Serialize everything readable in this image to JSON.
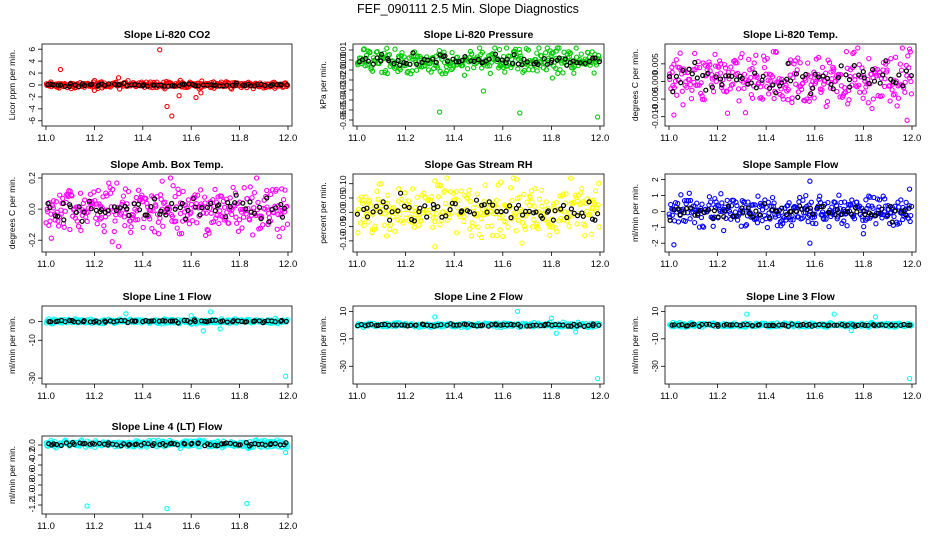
{
  "page_title": "FEF_090111  2.5 Min. Slope Diagnostics",
  "colors": {
    "red": "#ff0000",
    "green": "#00cc00",
    "magenta": "#ff00ff",
    "yellow": "#ffff00",
    "blue": "#0000ff",
    "cyan": "#00ffff",
    "black": "#000000"
  },
  "chart_data": [
    {
      "type": "scatter",
      "title": "Slope Li-820 CO2",
      "ylabel": "Licor ppm per min.",
      "xlabel": "",
      "xlim": [
        11.0,
        12.0
      ],
      "xticks": [
        11.0,
        11.2,
        11.4,
        11.6,
        11.8,
        12.0
      ],
      "xtick_labels": [
        "11.0",
        "11.2",
        "11.4",
        "11.6",
        "11.8",
        "12.0"
      ],
      "ylim": [
        -6.2,
        6.2
      ],
      "yticks": [
        -6,
        -4,
        -2,
        0,
        2,
        4,
        6
      ],
      "ytick_labels": [
        "-6",
        "-4",
        "-2",
        "0",
        "2",
        "4",
        "6"
      ],
      "series_color": "red",
      "bulk": {
        "n": 320,
        "center": 0.0,
        "spread": 0.55
      },
      "notable_points": [
        [
          11.06,
          2.6
        ],
        [
          11.47,
          5.9
        ],
        [
          11.5,
          -3.6
        ],
        [
          11.52,
          -5.2
        ],
        [
          11.55,
          -1.8
        ],
        [
          11.62,
          -2.1
        ],
        [
          11.64,
          -1.3
        ],
        [
          11.3,
          1.2
        ],
        [
          11.2,
          -0.9
        ]
      ]
    },
    {
      "type": "scatter",
      "title": "Slope Li-820 Pressure",
      "ylabel": "kPa per min.",
      "xlabel": "",
      "xlim": [
        11.0,
        12.0
      ],
      "xticks": [
        11.0,
        11.2,
        11.4,
        11.6,
        11.8,
        12.0
      ],
      "xtick_labels": [
        "11.0",
        "11.2",
        "11.4",
        "11.6",
        "11.8",
        "12.0"
      ],
      "ylim": [
        -0.062,
        0.012
      ],
      "yticks": [
        -0.06,
        -0.05,
        -0.04,
        -0.03,
        -0.02,
        -0.01,
        0.0,
        0.01
      ],
      "ytick_labels": [
        "-0.06",
        "-0.05",
        "-0.04",
        "-0.03",
        "-0.02",
        "-0.01",
        "0.00",
        "0.01"
      ],
      "series_color": "green",
      "bulk": {
        "n": 320,
        "center": -0.001,
        "spread": 0.012
      },
      "notable_points": [
        [
          11.34,
          -0.052
        ],
        [
          11.67,
          -0.053
        ],
        [
          11.99,
          -0.057
        ],
        [
          11.52,
          -0.031
        ],
        [
          11.82,
          0.009
        ],
        [
          11.1,
          0.004
        ]
      ]
    },
    {
      "type": "scatter",
      "title": "Slope Li-820 Temp.",
      "ylabel": "degrees C per min.",
      "xlabel": "",
      "xlim": [
        11.0,
        12.0
      ],
      "xticks": [
        11.0,
        11.2,
        11.4,
        11.6,
        11.8,
        12.0
      ],
      "xtick_labels": [
        "11.0",
        "11.2",
        "11.4",
        "11.6",
        "11.8",
        "12.0"
      ],
      "ylim": [
        -0.0115,
        0.0095
      ],
      "yticks": [
        -0.01,
        -0.005,
        0.0,
        0.005
      ],
      "ytick_labels": [
        "-0.010",
        "-0.005",
        "0.000",
        "0.005"
      ],
      "series_color": "magenta",
      "bulk": {
        "n": 320,
        "center": 0.0005,
        "spread": 0.0075
      },
      "notable_points": [
        [
          11.99,
          0.0092
        ],
        [
          11.98,
          -0.011
        ],
        [
          11.02,
          -0.0095
        ]
      ]
    },
    {
      "type": "scatter",
      "title": "Slope Amb. Box Temp.",
      "ylabel": "degrees C per min.",
      "xlabel": "",
      "xlim": [
        11.0,
        12.0
      ],
      "xticks": [
        11.0,
        11.2,
        11.4,
        11.6,
        11.8,
        12.0
      ],
      "xtick_labels": [
        "11.0",
        "11.2",
        "11.4",
        "11.6",
        "11.8",
        "12.0"
      ],
      "ylim": [
        -0.25,
        0.2
      ],
      "yticks": [
        -0.2,
        0.0,
        0.2
      ],
      "ytick_labels": [
        "-0.2",
        "0.0",
        "0.2"
      ],
      "series_color": "magenta",
      "bulk": {
        "n": 320,
        "center": 0.0,
        "spread": 0.15
      },
      "notable_points": [
        [
          11.3,
          -0.24
        ],
        [
          11.35,
          -0.15
        ],
        [
          11.48,
          0.18
        ]
      ]
    },
    {
      "type": "scatter",
      "title": "Slope Gas Stream RH",
      "ylabel": "percent per min.",
      "xlabel": "",
      "xlim": [
        11.0,
        12.0
      ],
      "xticks": [
        11.0,
        11.2,
        11.4,
        11.6,
        11.8,
        12.0
      ],
      "xtick_labels": [
        "11.0",
        "11.2",
        "11.4",
        "11.6",
        "11.8",
        "12.0"
      ],
      "ylim": [
        -0.125,
        0.12
      ],
      "yticks": [
        -0.1,
        -0.05,
        0.0,
        0.05,
        0.1
      ],
      "ytick_labels": [
        "-0.10",
        "-0.05",
        "0.00",
        "0.05",
        "0.10"
      ],
      "series_color": "yellow",
      "bulk": {
        "n": 320,
        "center": 0.0,
        "spread": 0.09
      },
      "notable_points": [
        [
          11.32,
          -0.12
        ],
        [
          11.32,
          0.11
        ],
        [
          11.1,
          0.1
        ]
      ]
    },
    {
      "type": "scatter",
      "title": "Slope Sample Flow",
      "ylabel": "ml/min per min.",
      "xlabel": "",
      "xlim": [
        11.0,
        12.0
      ],
      "xticks": [
        11.0,
        11.2,
        11.4,
        11.6,
        11.8,
        12.0
      ],
      "xtick_labels": [
        "11.0",
        "11.2",
        "11.4",
        "11.6",
        "11.8",
        "12.0"
      ],
      "ylim": [
        -2.3,
        2.1
      ],
      "yticks": [
        -2,
        -1,
        0,
        1,
        2
      ],
      "ytick_labels": [
        "-2",
        "-1",
        "0",
        "1",
        "2"
      ],
      "series_color": "blue",
      "bulk": {
        "n": 320,
        "center": 0.0,
        "spread": 0.9
      },
      "notable_points": [
        [
          11.02,
          -2.1
        ],
        [
          11.58,
          1.9
        ],
        [
          11.58,
          -2.0
        ],
        [
          11.99,
          1.4
        ],
        [
          11.8,
          -1.4
        ]
      ]
    },
    {
      "type": "scatter",
      "title": "Slope Line 1 Flow",
      "ylabel": "ml/min per min.",
      "xlabel": "",
      "xlim": [
        11.0,
        12.0
      ],
      "xticks": [
        11.0,
        11.2,
        11.4,
        11.6,
        11.8,
        12.0
      ],
      "xtick_labels": [
        "11.0",
        "11.2",
        "11.4",
        "11.6",
        "11.8",
        "12.0"
      ],
      "ylim": [
        -31,
        6
      ],
      "yticks": [
        -30,
        -10,
        0
      ],
      "ytick_labels": [
        "-30",
        "-10",
        "0"
      ],
      "series_color": "cyan",
      "bulk": {
        "n": 320,
        "center": 0.0,
        "spread": 1.2
      },
      "notable_points": [
        [
          11.99,
          -29
        ],
        [
          11.33,
          4
        ],
        [
          11.65,
          -5
        ],
        [
          11.72,
          -4
        ],
        [
          11.68,
          5
        ],
        [
          11.6,
          3
        ]
      ]
    },
    {
      "type": "scatter",
      "title": "Slope Line 2 Flow",
      "ylabel": "ml/min per min.",
      "xlabel": "",
      "xlim": [
        11.0,
        12.0
      ],
      "xticks": [
        11.0,
        11.2,
        11.4,
        11.6,
        11.8,
        12.0
      ],
      "xtick_labels": [
        "11.0",
        "11.2",
        "11.4",
        "11.6",
        "11.8",
        "12.0"
      ],
      "ylim": [
        -40,
        11
      ],
      "yticks": [
        -30,
        -10,
        10
      ],
      "ytick_labels": [
        "-30",
        "-10",
        "10"
      ],
      "series_color": "cyan",
      "bulk": {
        "n": 320,
        "center": 0.0,
        "spread": 1.6
      },
      "notable_points": [
        [
          11.99,
          -39
        ],
        [
          11.82,
          -6
        ],
        [
          11.9,
          -5
        ],
        [
          11.8,
          5
        ],
        [
          11.66,
          10
        ],
        [
          11.32,
          6
        ]
      ]
    },
    {
      "type": "scatter",
      "title": "Slope Line 3 Flow",
      "ylabel": "ml/min per min.",
      "xlabel": "",
      "xlim": [
        11.0,
        12.0
      ],
      "xticks": [
        11.0,
        11.2,
        11.4,
        11.6,
        11.8,
        12.0
      ],
      "xtick_labels": [
        "11.0",
        "11.2",
        "11.4",
        "11.6",
        "11.8",
        "12.0"
      ],
      "ylim": [
        -40,
        11
      ],
      "yticks": [
        -30,
        -10,
        10
      ],
      "ytick_labels": [
        "-30",
        "-10",
        "10"
      ],
      "series_color": "cyan",
      "bulk": {
        "n": 320,
        "center": 0.0,
        "spread": 1.6
      },
      "notable_points": [
        [
          11.99,
          -39
        ],
        [
          11.68,
          8
        ],
        [
          11.75,
          -4
        ],
        [
          11.85,
          6
        ],
        [
          11.32,
          8
        ]
      ]
    },
    {
      "type": "scatter",
      "title": "Slope Line 4 (LT) Flow",
      "ylabel": "ml/min per min.",
      "xlabel": "",
      "xlim": [
        11.0,
        12.0
      ],
      "xticks": [
        11.0,
        11.2,
        11.4,
        11.6,
        11.8,
        12.0
      ],
      "xtick_labels": [
        "11.0",
        "11.2",
        "11.4",
        "11.6",
        "11.8",
        "12.0"
      ],
      "ylim": [
        -1.3,
        0.1
      ],
      "yticks": [
        -1.2,
        -1.0,
        -0.8,
        -0.6,
        -0.4,
        -0.2,
        0.0
      ],
      "ytick_labels": [
        "-1.2",
        "-1.0",
        "-0.8",
        "-0.6",
        "-0.4",
        "-0.2",
        "0.0"
      ],
      "series_color": "cyan",
      "bulk": {
        "n": 320,
        "center": 0.02,
        "spread": 0.07
      },
      "notable_points": [
        [
          11.17,
          -1.22
        ],
        [
          11.5,
          -1.27
        ],
        [
          11.83,
          -1.17
        ],
        [
          11.99,
          -0.15
        ],
        [
          11.02,
          0.09
        ]
      ]
    }
  ]
}
